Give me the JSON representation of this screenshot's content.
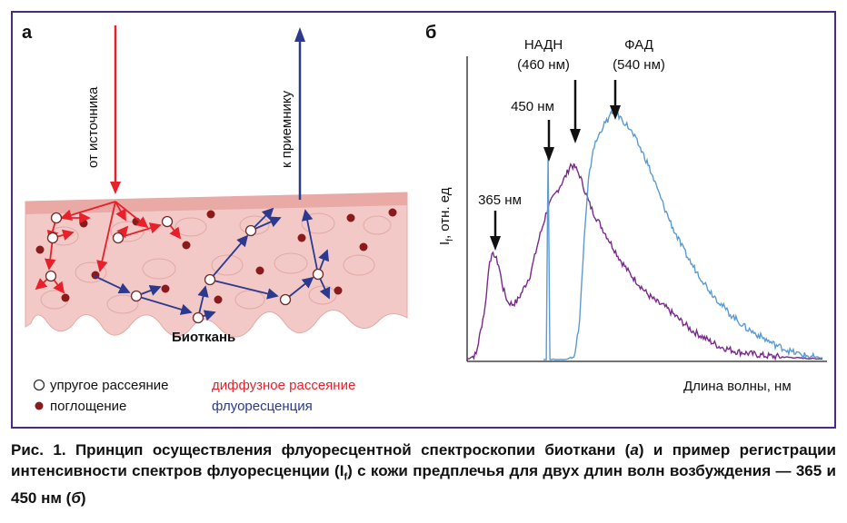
{
  "panel_a": {
    "label": "а",
    "source_label": "от источника",
    "receiver_label": "к приемнику",
    "tissue_label": "Биоткань",
    "legend": {
      "elastic": "упругое рассеяние",
      "diffuse": "диффузное рассеяние",
      "absorption": "поглощение",
      "fluorescence": "флуоресценция"
    },
    "colors": {
      "diffuse": "#e8202a",
      "fluorescence": "#2b3a8f",
      "absorber": "#8b1a1a",
      "tissue": "#f2c9c6"
    }
  },
  "panel_b": {
    "label": "б",
    "annotations": {
      "nadh_name": "НАДН",
      "nadh_wl": "(460 нм)",
      "fad_name": "ФАД",
      "fad_wl": "(540 нм)",
      "exc450": "450 нм",
      "exc365": "365 нм"
    },
    "ylabel_main": "I",
    "ylabel_sub": "f",
    "ylabel_rest": ", отн. ед",
    "xlabel": "Длина волны, нм"
  },
  "chart_data": {
    "type": "line",
    "xlabel": "Длина волны, нм",
    "ylabel": "If, отн. ед",
    "series": [
      {
        "name": "365 нм",
        "color": "#7a2a8c",
        "x": [
          0,
          10,
          20,
          25,
          30,
          35,
          40,
          45,
          50,
          55,
          60,
          70,
          80,
          90,
          100,
          110,
          115,
          120,
          125,
          130,
          135,
          140,
          150,
          160,
          170,
          180,
          190,
          200,
          210,
          220,
          230,
          240,
          250,
          260,
          270,
          280,
          290,
          300,
          310,
          320,
          330,
          340,
          350,
          360,
          370,
          380,
          395
        ],
        "y": [
          0,
          0.02,
          0.2,
          0.38,
          0.4,
          0.36,
          0.27,
          0.22,
          0.21,
          0.22,
          0.25,
          0.32,
          0.46,
          0.58,
          0.64,
          0.7,
          0.74,
          0.73,
          0.7,
          0.65,
          0.6,
          0.56,
          0.5,
          0.44,
          0.38,
          0.33,
          0.29,
          0.25,
          0.22,
          0.2,
          0.17,
          0.14,
          0.11,
          0.09,
          0.07,
          0.05,
          0.04,
          0.03,
          0.025,
          0.02,
          0.015,
          0.012,
          0.01,
          0.008,
          0.006,
          0.004,
          0.003
        ]
      },
      {
        "name": "450 нм",
        "color": "#5b9bd2",
        "x": [
          85,
          88,
          90,
          92,
          95,
          110,
          120,
          125,
          130,
          135,
          140,
          150,
          160,
          165,
          170,
          180,
          190,
          200,
          210,
          220,
          230,
          240,
          250,
          260,
          270,
          280,
          290,
          300,
          310,
          320,
          330,
          340,
          350,
          360,
          370,
          380,
          395
        ],
        "y": [
          0,
          0,
          0.78,
          0,
          0,
          0,
          0.02,
          0.15,
          0.45,
          0.68,
          0.8,
          0.88,
          0.93,
          0.94,
          0.92,
          0.88,
          0.82,
          0.75,
          0.66,
          0.57,
          0.49,
          0.42,
          0.36,
          0.31,
          0.26,
          0.22,
          0.18,
          0.15,
          0.12,
          0.1,
          0.08,
          0.06,
          0.045,
          0.03,
          0.02,
          0.012,
          0.006
        ]
      }
    ]
  },
  "caption": {
    "p1": "Рис. 1. Принцип осуществления флуоресцентной спектроскопии биоткани (",
    "a": "а",
    "p2": ") и пример регистрации интенсивности спектров флуоресценции (I",
    "f": "f",
    "p3": ") с кожи предплечья для двух длин волн возбуждения — 365 и 450 нм (",
    "b": "б",
    "p4": ")"
  }
}
